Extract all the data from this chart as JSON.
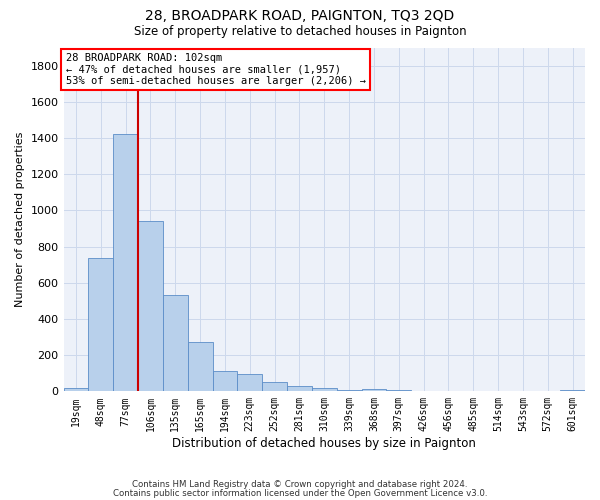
{
  "title1": "28, BROADPARK ROAD, PAIGNTON, TQ3 2QD",
  "title2": "Size of property relative to detached houses in Paignton",
  "xlabel": "Distribution of detached houses by size in Paignton",
  "ylabel": "Number of detached properties",
  "categories": [
    "19sqm",
    "48sqm",
    "77sqm",
    "106sqm",
    "135sqm",
    "165sqm",
    "194sqm",
    "223sqm",
    "252sqm",
    "281sqm",
    "310sqm",
    "339sqm",
    "368sqm",
    "397sqm",
    "426sqm",
    "456sqm",
    "485sqm",
    "514sqm",
    "543sqm",
    "572sqm",
    "601sqm"
  ],
  "values": [
    20,
    735,
    1420,
    940,
    530,
    270,
    110,
    95,
    50,
    30,
    20,
    5,
    15,
    5,
    2,
    2,
    1,
    1,
    1,
    1,
    5
  ],
  "bar_color": "#b8d0eb",
  "bar_edge_color": "#5b8dc8",
  "vline_color": "#cc0000",
  "vline_pos": 2.5,
  "annotation_line1": "28 BROADPARK ROAD: 102sqm",
  "annotation_line2": "← 47% of detached houses are smaller (1,957)",
  "annotation_line3": "53% of semi-detached houses are larger (2,206) →",
  "footnote1": "Contains HM Land Registry data © Crown copyright and database right 2024.",
  "footnote2": "Contains public sector information licensed under the Open Government Licence v3.0.",
  "ylim_max": 1900,
  "yticks": [
    0,
    200,
    400,
    600,
    800,
    1000,
    1200,
    1400,
    1600,
    1800
  ],
  "grid_color": "#cdd8ec",
  "bg_color": "#edf1f9"
}
